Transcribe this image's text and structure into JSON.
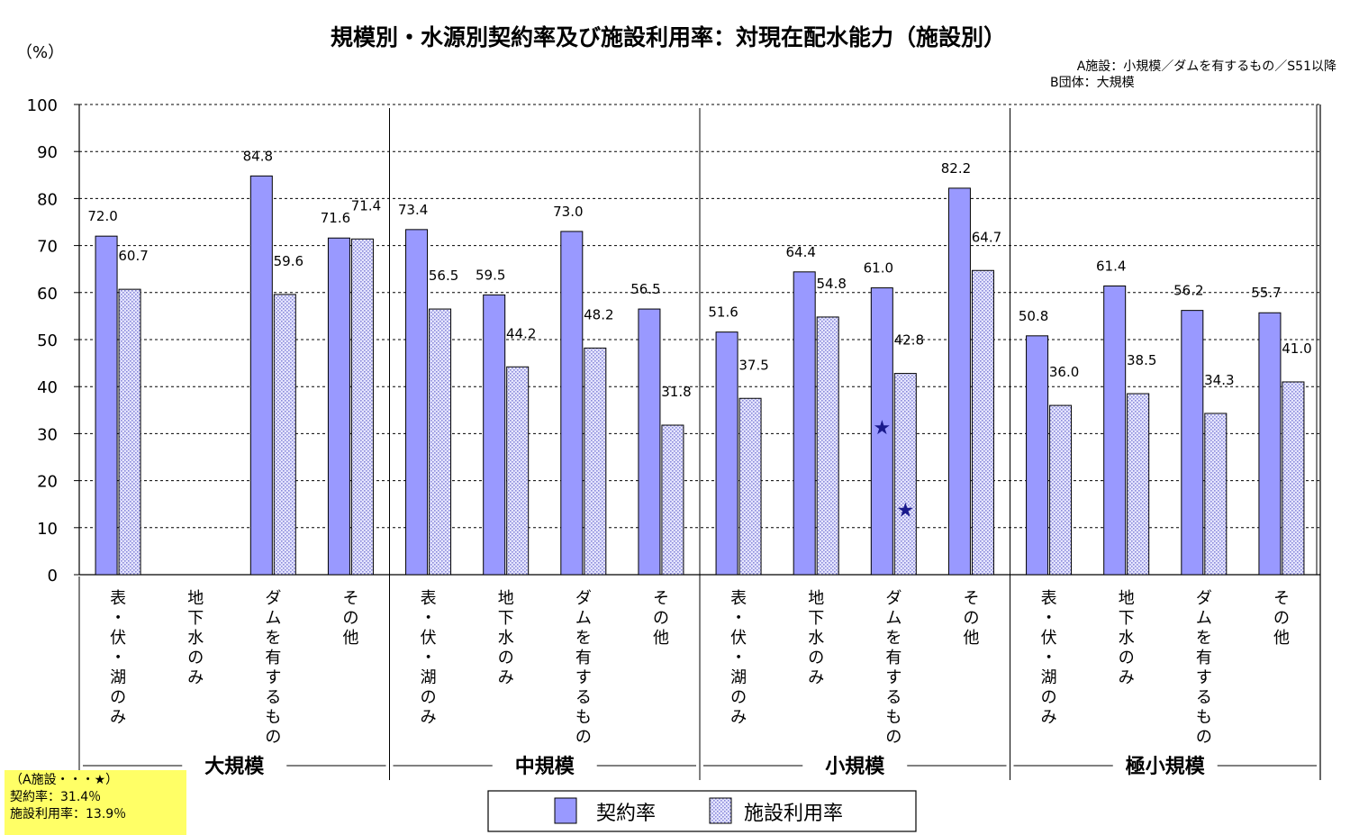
{
  "chart_data": {
    "type": "bar",
    "title": "規模別・水源別契約率及び施設利用率：対現在配水能力（施設別）",
    "ylabel": "（%）",
    "ylim": [
      0,
      100
    ],
    "yticks": [
      0,
      10,
      20,
      30,
      40,
      50,
      60,
      70,
      80,
      90,
      100
    ],
    "grid": true,
    "legend_position": "bottom",
    "notes": [
      "A施設：小規模／ダムを有するもの／S51以降",
      "B団体：大規模"
    ],
    "groups": [
      {
        "label": "大規模",
        "categories": [
          "表・伏・湖のみ",
          "地下水のみ",
          "ダムを有するもの",
          "その他"
        ]
      },
      {
        "label": "中規模",
        "categories": [
          "表・伏・湖のみ",
          "地下水のみ",
          "ダムを有するもの",
          "その他"
        ]
      },
      {
        "label": "小規模",
        "categories": [
          "表・伏・湖のみ",
          "地下水のみ",
          "ダムを有するもの",
          "その他"
        ]
      },
      {
        "label": "極小規模",
        "categories": [
          "表・伏・湖のみ",
          "地下水のみ",
          "ダムを有するもの",
          "その他"
        ]
      }
    ],
    "series": [
      {
        "name": "契約率",
        "color": "#9999ff",
        "values": [
          72.0,
          null,
          84.8,
          71.6,
          73.4,
          59.5,
          73.0,
          56.5,
          51.6,
          64.4,
          61.0,
          82.2,
          50.8,
          61.4,
          56.2,
          55.7
        ],
        "labels": [
          "72.0",
          "",
          "84.8",
          "71.6",
          "73.4",
          "59.5",
          "73.0",
          "56.5",
          "51.6",
          "64.4",
          "61.0",
          "82.2",
          "50.8",
          "61.4",
          "56.2",
          "55.7"
        ]
      },
      {
        "name": "施設利用率",
        "color": "#ccccff",
        "pattern": "dotted",
        "values": [
          60.7,
          null,
          59.6,
          71.4,
          56.5,
          44.2,
          48.2,
          31.8,
          37.5,
          54.8,
          42.8,
          64.7,
          36.0,
          38.5,
          34.3,
          41.0
        ],
        "labels": [
          "60.7",
          "",
          "59.6",
          "71.4",
          "56.5",
          "44.2",
          "48.2",
          "31.8",
          "37.5",
          "54.8",
          "42.8",
          "64.7",
          "36.0",
          "38.5",
          "34.3",
          "41.0"
        ]
      }
    ],
    "markers": [
      {
        "label": "A施設",
        "symbol": "★",
        "color": "#1a1a8c",
        "category_index": 10,
        "series": 0,
        "value": 31.4
      },
      {
        "label": "A施設",
        "symbol": "★",
        "color": "#1a1a8c",
        "category_index": 10,
        "series": 1,
        "value": 13.9
      }
    ]
  },
  "note_box": {
    "line1": "（A施設・・・★）",
    "line2": "契約率：31.4％",
    "line3": "施設利用率：13.9％",
    "background": "#ffff66"
  }
}
